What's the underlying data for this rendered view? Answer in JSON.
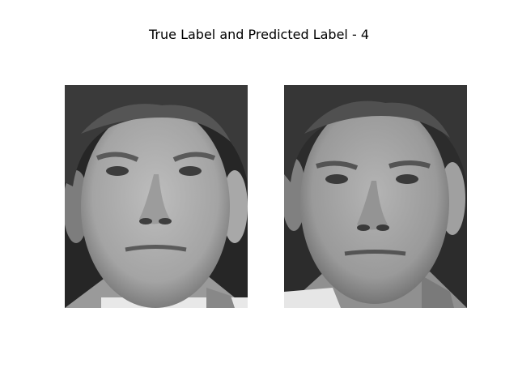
{
  "title": "True Label and Predicted Label - 4",
  "images": [
    {
      "name": "true-face-image",
      "depicts": "grayscale face photo of a man"
    },
    {
      "name": "predicted-face-image",
      "depicts": "grayscale face photo of the same man"
    }
  ],
  "colors": {
    "background": "#ffffff",
    "text": "#000000"
  }
}
